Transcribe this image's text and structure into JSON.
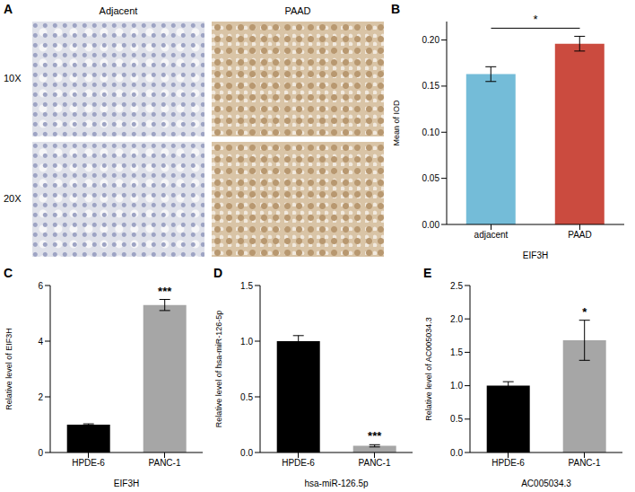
{
  "image_panel": {
    "panel_label": "A",
    "columns": [
      "Adjacent",
      "PAAD"
    ],
    "rows": [
      "10X",
      "20X"
    ]
  },
  "chart_data": [
    {
      "type": "bar",
      "panel_label": "B",
      "categories": [
        "adjacent",
        "PAAD"
      ],
      "values": [
        0.163,
        0.196
      ],
      "errors": [
        0.008,
        0.008
      ],
      "colors": [
        "#74bcd8",
        "#cb4b3f"
      ],
      "y_label": "Mean of IOD",
      "x_label": "EIF3H",
      "ylim": [
        0,
        0.22
      ],
      "yticks": [
        {
          "value": 0,
          "label": "0.00"
        },
        {
          "value": 0.05,
          "label": "0.05"
        },
        {
          "value": 0.1,
          "label": "0.10"
        },
        {
          "value": 0.15,
          "label": "0.15"
        },
        {
          "value": 0.2,
          "label": "0.20"
        }
      ],
      "significance": {
        "label": "*",
        "between": [
          "adjacent",
          "PAAD"
        ],
        "bracket": true
      }
    },
    {
      "type": "bar",
      "panel_label": "C",
      "categories": [
        "HPDE-6",
        "PANC-1"
      ],
      "values": [
        1.0,
        5.3
      ],
      "errors": [
        0.03,
        0.2
      ],
      "colors": [
        "#000000",
        "#a6a6a6"
      ],
      "y_label": "Relative level of EIF3H",
      "x_label": "EIF3H",
      "ylim": [
        0,
        6
      ],
      "yticks": [
        0,
        2,
        4,
        6
      ],
      "significance": {
        "label": "***",
        "between": [
          "HPDE-6",
          "PANC-1"
        ],
        "bracket": false
      }
    },
    {
      "type": "bar",
      "panel_label": "D",
      "categories": [
        "HPDE-6",
        "PANC-1"
      ],
      "values": [
        1.0,
        0.06
      ],
      "errors": [
        0.05,
        0.01
      ],
      "colors": [
        "#000000",
        "#a6a6a6"
      ],
      "y_label": "Relative level of hsa-miR-126-5p",
      "x_label": "hsa-miR-126.5p",
      "ylim": [
        0,
        1.5
      ],
      "yticks": [
        {
          "value": 0,
          "label": "0.0"
        },
        {
          "value": 0.5,
          "label": "0.5"
        },
        {
          "value": 1,
          "label": "1.0"
        },
        {
          "value": 1.5,
          "label": "1.5"
        }
      ],
      "significance": {
        "label": "***",
        "between": [
          "HPDE-6",
          "PANC-1"
        ],
        "bracket": false
      }
    },
    {
      "type": "bar",
      "panel_label": "E",
      "categories": [
        "HPDE-6",
        "PANC-1"
      ],
      "values": [
        1.0,
        1.68
      ],
      "errors": [
        0.06,
        0.3
      ],
      "colors": [
        "#000000",
        "#a6a6a6"
      ],
      "y_label": "Relative level of AC005034.3",
      "x_label": "AC005034.3",
      "ylim": [
        0,
        2.5
      ],
      "yticks": [
        {
          "value": 0,
          "label": "0.0"
        },
        {
          "value": 0.5,
          "label": "0.5"
        },
        {
          "value": 1,
          "label": "1.0"
        },
        {
          "value": 1.5,
          "label": "1.5"
        },
        {
          "value": 2,
          "label": "2.0"
        },
        {
          "value": 2.5,
          "label": "2.5"
        }
      ],
      "significance": {
        "label": "*",
        "between": [
          "HPDE-6",
          "PANC-1"
        ],
        "bracket": false
      }
    }
  ]
}
